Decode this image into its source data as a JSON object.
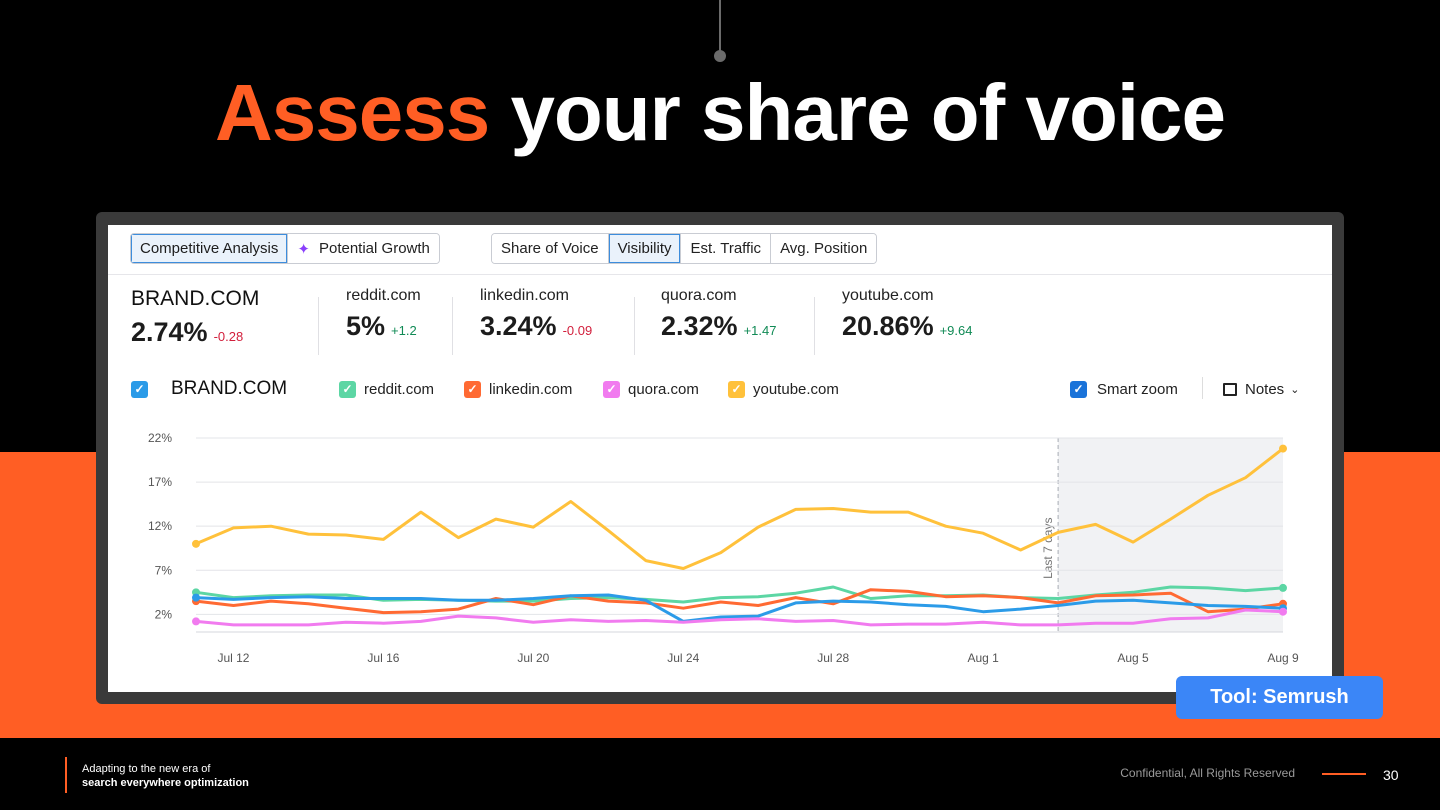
{
  "slide": {
    "title_accent": "Assess",
    "title_rest": "your share of voice",
    "tool_badge": "Tool: Semrush",
    "footer_line1": "Adapting to the new era of",
    "footer_line2": "search everywhere optimization",
    "confidential": "Confidential, All Rights Reserved",
    "page_number": "30"
  },
  "toolbar": {
    "group1": [
      "Competitive Analysis",
      "Potential Growth"
    ],
    "group2": [
      "Share of Voice",
      "Visibility",
      "Est. Traffic",
      "Avg. Position"
    ],
    "active_group1": "Competitive Analysis",
    "active_group2": "Visibility"
  },
  "metrics": [
    {
      "name": "BRAND.COM",
      "value": "2.74%",
      "delta": "-0.28",
      "trend": "neg"
    },
    {
      "name": "reddit.com",
      "value": "5%",
      "delta": "+1.2",
      "trend": "pos"
    },
    {
      "name": "linkedin.com",
      "value": "3.24%",
      "delta": "-0.09",
      "trend": "neg"
    },
    {
      "name": "quora.com",
      "value": "2.32%",
      "delta": "+1.47",
      "trend": "pos"
    },
    {
      "name": "youtube.com",
      "value": "20.86%",
      "delta": "+9.64",
      "trend": "pos"
    }
  ],
  "legend": {
    "items": [
      {
        "label": "BRAND.COM",
        "color": "#2B9BE8"
      },
      {
        "label": "reddit.com",
        "color": "#5CD6A4"
      },
      {
        "label": "linkedin.com",
        "color": "#FF6A33"
      },
      {
        "label": "quora.com",
        "color": "#F17BEF"
      },
      {
        "label": "youtube.com",
        "color": "#FFC13B"
      }
    ],
    "smart_zoom": "Smart zoom",
    "notes": "Notes"
  },
  "chart_data": {
    "type": "line",
    "x": [
      "Jul 11",
      "Jul 12",
      "Jul 13",
      "Jul 14",
      "Jul 15",
      "Jul 16",
      "Jul 17",
      "Jul 18",
      "Jul 19",
      "Jul 20",
      "Jul 21",
      "Jul 22",
      "Jul 23",
      "Jul 24",
      "Jul 25",
      "Jul 26",
      "Jul 27",
      "Jul 28",
      "Jul 29",
      "Jul 30",
      "Jul 31",
      "Aug 1",
      "Aug 2",
      "Aug 3",
      "Aug 4",
      "Aug 5",
      "Aug 6",
      "Aug 7",
      "Aug 8",
      "Aug 9"
    ],
    "x_tick_labels": [
      "Jul 12",
      "Jul 16",
      "Jul 20",
      "Jul 24",
      "Jul 28",
      "Aug 1",
      "Aug 5",
      "Aug 9"
    ],
    "y_ticks": [
      "22%",
      "17%",
      "12%",
      "7%",
      "2%"
    ],
    "ylim": [
      0,
      22
    ],
    "highlight_label": "Last 7 days",
    "highlight_from": "Aug 3",
    "grid": true,
    "series": [
      {
        "name": "youtube.com",
        "color": "#FFC13B",
        "values": [
          10.0,
          11.8,
          12.0,
          11.1,
          11.0,
          10.5,
          13.6,
          10.7,
          12.8,
          11.9,
          14.8,
          11.5,
          8.1,
          7.2,
          9.0,
          11.9,
          13.9,
          14.0,
          13.6,
          13.6,
          12.0,
          11.2,
          9.3,
          11.3,
          12.2,
          10.2,
          12.8,
          15.5,
          17.5,
          20.8
        ]
      },
      {
        "name": "reddit.com",
        "color": "#5CD6A4",
        "values": [
          4.5,
          3.9,
          4.1,
          4.2,
          4.2,
          3.6,
          3.7,
          3.6,
          3.5,
          3.5,
          3.8,
          3.9,
          3.7,
          3.4,
          3.9,
          4.0,
          4.4,
          5.1,
          3.8,
          4.1,
          4.1,
          4.2,
          3.9,
          3.8,
          4.2,
          4.5,
          5.1,
          5.0,
          4.7,
          5.0
        ]
      },
      {
        "name": "linkedin.com",
        "color": "#FF6A33",
        "values": [
          3.5,
          3.0,
          3.5,
          3.2,
          2.7,
          2.2,
          2.3,
          2.6,
          3.8,
          3.1,
          4.1,
          3.5,
          3.3,
          2.7,
          3.4,
          3.0,
          3.9,
          3.2,
          4.8,
          4.6,
          4.0,
          4.1,
          3.9,
          3.3,
          4.1,
          4.2,
          4.4,
          2.3,
          2.6,
          3.2
        ]
      },
      {
        "name": "BRAND.COM",
        "color": "#2B9BE8",
        "values": [
          3.9,
          3.7,
          3.9,
          4.0,
          3.8,
          3.8,
          3.8,
          3.6,
          3.6,
          3.8,
          4.1,
          4.2,
          3.6,
          1.2,
          1.7,
          1.8,
          3.3,
          3.5,
          3.4,
          3.1,
          2.9,
          2.3,
          2.6,
          3.0,
          3.5,
          3.6,
          3.3,
          3.0,
          2.9,
          2.7
        ]
      },
      {
        "name": "quora.com",
        "color": "#F17BEF",
        "values": [
          1.2,
          0.8,
          0.8,
          0.8,
          1.1,
          1.0,
          1.2,
          1.8,
          1.6,
          1.1,
          1.4,
          1.2,
          1.3,
          1.1,
          1.4,
          1.5,
          1.2,
          1.3,
          0.8,
          0.9,
          0.9,
          1.1,
          0.8,
          0.8,
          1.0,
          1.0,
          1.5,
          1.6,
          2.5,
          2.3
        ]
      }
    ]
  }
}
